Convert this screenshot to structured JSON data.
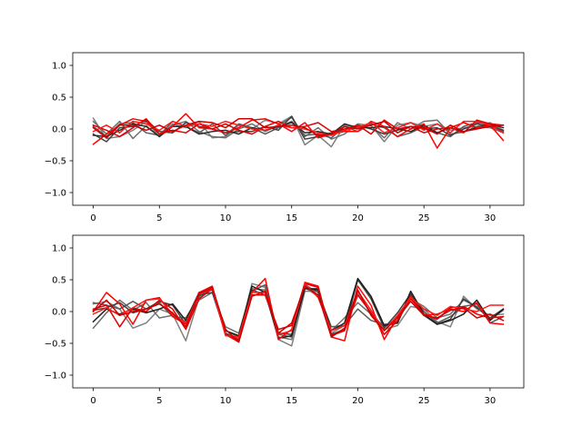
{
  "chart_data": [
    {
      "type": "line",
      "title": "",
      "xlabel": "",
      "ylabel": "",
      "xlim": [
        -1.55,
        32.55
      ],
      "ylim": [
        -1.2,
        1.2
      ],
      "xticks": [
        0,
        5,
        10,
        15,
        20,
        25,
        30
      ],
      "yticks": [
        -1.0,
        -0.5,
        0.0,
        0.5,
        1.0
      ],
      "ytick_labels": [
        "−1.0",
        "−0.5",
        "0.0",
        "0.5",
        "1.0"
      ],
      "x": [
        0,
        1,
        2,
        3,
        4,
        5,
        6,
        7,
        8,
        9,
        10,
        11,
        12,
        13,
        14,
        15,
        16,
        17,
        18,
        19,
        20,
        21,
        22,
        23,
        24,
        25,
        26,
        27,
        28,
        29,
        30,
        31
      ],
      "series": [
        {
          "color": "#808080",
          "values": [
            0.17,
            -0.15,
            -0.12,
            -0.02,
            0.12,
            -0.12,
            0.08,
            0.02,
            0.12,
            -0.14,
            -0.12,
            0.06,
            0.0,
            0.14,
            0.08,
            0.2,
            -0.25,
            -0.1,
            -0.28,
            0.06,
            0.04,
            0.06,
            -0.2,
            0.06,
            0.1,
            0.04,
            0.08,
            -0.02,
            0.02,
            0.04,
            0.1,
            -0.02
          ]
        },
        {
          "color": "#707070",
          "values": [
            0.12,
            -0.08,
            0.12,
            -0.15,
            0.05,
            -0.12,
            0.06,
            0.12,
            -0.04,
            -0.12,
            -0.14,
            0.0,
            0.08,
            -0.04,
            0.06,
            0.18,
            -0.12,
            0.02,
            -0.16,
            -0.08,
            0.08,
            0.05,
            -0.14,
            0.1,
            0.0,
            0.12,
            0.14,
            -0.08,
            -0.05,
            0.04,
            0.02,
            -0.06
          ]
        },
        {
          "color": "#5a5a5a",
          "values": [
            0.04,
            -0.12,
            0.08,
            0.1,
            -0.06,
            -0.1,
            0.12,
            0.04,
            -0.06,
            0.08,
            -0.1,
            0.08,
            0.02,
            -0.08,
            0.02,
            0.12,
            -0.1,
            -0.08,
            -0.14,
            0.04,
            -0.04,
            0.08,
            0.02,
            -0.12,
            -0.06,
            0.04,
            -0.06,
            -0.12,
            0.04,
            0.1,
            0.08,
            -0.04
          ]
        },
        {
          "color": "#404040",
          "values": [
            -0.08,
            -0.2,
            0.02,
            0.04,
            0.14,
            -0.04,
            -0.06,
            0.1,
            0.04,
            0.0,
            -0.06,
            -0.04,
            -0.04,
            0.04,
            -0.02,
            0.2,
            -0.16,
            -0.12,
            -0.06,
            -0.02,
            0.06,
            0.0,
            -0.08,
            -0.02,
            0.04,
            0.0,
            0.02,
            -0.1,
            0.0,
            0.08,
            0.04,
            -0.02
          ]
        },
        {
          "color": "#2a2a2a",
          "values": [
            -0.1,
            -0.12,
            -0.02,
            0.08,
            0.04,
            -0.12,
            0.04,
            0.04,
            -0.08,
            -0.04,
            -0.02,
            -0.08,
            0.02,
            -0.02,
            0.04,
            0.1,
            -0.06,
            -0.04,
            -0.08,
            0.08,
            0.02,
            0.02,
            0.04,
            0.0,
            -0.04,
            0.06,
            -0.06,
            0.02,
            -0.04,
            0.02,
            0.08,
            0.02
          ]
        },
        {
          "color": "#ff0000",
          "values": [
            -0.24,
            -0.08,
            0.06,
            0.16,
            0.12,
            -0.08,
            0.04,
            0.24,
            0.02,
            0.0,
            -0.06,
            0.02,
            0.14,
            0.16,
            0.08,
            -0.04,
            0.1,
            -0.14,
            -0.08,
            -0.04,
            -0.04,
            0.12,
            0.04,
            -0.12,
            0.0,
            0.08,
            -0.3,
            0.02,
            0.1,
            0.02,
            0.06,
            -0.18
          ]
        },
        {
          "color": "#e00000",
          "values": [
            0.06,
            -0.02,
            -0.12,
            0.02,
            0.16,
            -0.08,
            -0.02,
            -0.06,
            0.08,
            0.0,
            0.08,
            -0.02,
            -0.08,
            0.04,
            0.12,
            0.02,
            0.04,
            0.1,
            -0.04,
            0.0,
            0.06,
            -0.08,
            0.14,
            0.0,
            0.04,
            -0.06,
            0.0,
            0.02,
            -0.06,
            0.14,
            0.08,
            0.06
          ]
        },
        {
          "color": "#ff1a1a",
          "values": [
            -0.04,
            0.06,
            -0.06,
            0.12,
            0.08,
            -0.02,
            0.12,
            0.04,
            0.08,
            0.04,
            0.12,
            0.06,
            0.0,
            -0.02,
            0.06,
            0.02,
            0.0,
            -0.06,
            -0.1,
            -0.02,
            0.02,
            0.1,
            -0.06,
            0.02,
            0.1,
            -0.02,
            0.08,
            -0.06,
            0.12,
            0.12,
            0.06,
            -0.06
          ]
        },
        {
          "color": "#cc0000",
          "values": [
            0.02,
            -0.14,
            0.06,
            0.06,
            -0.02,
            0.06,
            -0.04,
            0.06,
            0.12,
            0.1,
            0.02,
            0.16,
            0.16,
            0.02,
            0.04,
            0.06,
            0.02,
            -0.1,
            -0.08,
            0.04,
            0.0,
            0.06,
            0.12,
            -0.06,
            0.04,
            0.02,
            -0.08,
            0.06,
            -0.04,
            0.0,
            0.04,
            0.06
          ]
        }
      ]
    },
    {
      "type": "line",
      "title": "",
      "xlabel": "",
      "ylabel": "",
      "xlim": [
        -1.55,
        32.55
      ],
      "ylim": [
        -1.2,
        1.2
      ],
      "xticks": [
        0,
        5,
        10,
        15,
        20,
        25,
        30
      ],
      "yticks": [
        -1.0,
        -0.5,
        0.0,
        0.5,
        1.0
      ],
      "ytick_labels": [
        "−1.0",
        "−0.5",
        "0.0",
        "0.5",
        "1.0"
      ],
      "x": [
        0,
        1,
        2,
        3,
        4,
        5,
        6,
        7,
        8,
        9,
        10,
        11,
        12,
        13,
        14,
        15,
        16,
        17,
        18,
        19,
        20,
        21,
        22,
        23,
        24,
        25,
        26,
        27,
        28,
        29,
        30,
        31
      ],
      "series": [
        {
          "color": "#808080",
          "values": [
            0.12,
            0.16,
            0.04,
            -0.26,
            -0.18,
            0.04,
            -0.04,
            -0.46,
            0.22,
            0.36,
            -0.34,
            -0.42,
            0.44,
            0.38,
            -0.44,
            -0.54,
            0.32,
            0.32,
            -0.34,
            -0.22,
            0.28,
            -0.02,
            -0.28,
            -0.22,
            0.08,
            0.04,
            -0.16,
            -0.24,
            0.24,
            0.04,
            -0.06,
            -0.04
          ]
        },
        {
          "color": "#6e6e6e",
          "values": [
            -0.26,
            -0.02,
            0.18,
            0.02,
            0.14,
            -0.1,
            -0.06,
            -0.16,
            0.18,
            0.3,
            -0.24,
            -0.34,
            0.36,
            0.34,
            -0.4,
            -0.44,
            0.38,
            0.24,
            -0.3,
            -0.1,
            0.14,
            -0.04,
            -0.24,
            -0.1,
            0.2,
            0.08,
            -0.1,
            -0.04,
            0.18,
            0.08,
            -0.12,
            0.02
          ]
        },
        {
          "color": "#5a5a5a",
          "values": [
            0.14,
            0.1,
            0.04,
            0.16,
            0.04,
            0.14,
            -0.08,
            -0.1,
            0.24,
            0.38,
            -0.3,
            -0.4,
            0.32,
            0.42,
            -0.36,
            -0.4,
            0.42,
            0.3,
            -0.24,
            -0.22,
            0.04,
            -0.14,
            -0.2,
            -0.18,
            0.26,
            0.0,
            -0.18,
            -0.08,
            0.08,
            0.12,
            -0.18,
            -0.08
          ]
        },
        {
          "color": "#404040",
          "values": [
            0.02,
            0.06,
            0.14,
            -0.02,
            0.04,
            0.16,
            0.1,
            -0.2,
            0.26,
            0.3,
            -0.34,
            -0.46,
            0.34,
            0.26,
            -0.34,
            -0.36,
            0.36,
            0.36,
            -0.36,
            -0.28,
            0.5,
            0.2,
            -0.26,
            -0.02,
            0.28,
            -0.06,
            -0.2,
            -0.12,
            0.2,
            0.06,
            -0.1,
            0.04
          ]
        },
        {
          "color": "#1e1e1e",
          "values": [
            -0.16,
            0.04,
            -0.04,
            0.04,
            -0.02,
            0.04,
            0.12,
            -0.14,
            0.3,
            0.34,
            -0.3,
            -0.38,
            0.4,
            0.3,
            -0.42,
            -0.38,
            0.36,
            0.34,
            -0.3,
            -0.18,
            0.52,
            0.24,
            -0.22,
            -0.18,
            0.32,
            -0.04,
            -0.2,
            -0.14,
            -0.04,
            0.18,
            -0.14,
            0.04
          ]
        },
        {
          "color": "#ff0000",
          "values": [
            0.0,
            0.3,
            0.12,
            -0.2,
            0.18,
            0.22,
            -0.08,
            -0.2,
            0.3,
            0.4,
            -0.36,
            -0.48,
            0.3,
            0.52,
            -0.44,
            -0.28,
            0.46,
            0.4,
            -0.4,
            -0.46,
            0.4,
            0.1,
            -0.44,
            -0.08,
            0.24,
            -0.06,
            -0.04,
            0.04,
            0.0,
            0.14,
            -0.18,
            -0.2
          ]
        },
        {
          "color": "#e00000",
          "values": [
            0.04,
            0.1,
            -0.24,
            0.06,
            0.0,
            0.18,
            0.04,
            -0.28,
            0.2,
            0.36,
            -0.36,
            -0.44,
            0.26,
            0.26,
            -0.28,
            -0.22,
            0.44,
            0.38,
            -0.38,
            -0.3,
            0.26,
            -0.02,
            -0.36,
            -0.14,
            0.2,
            -0.04,
            -0.12,
            0.06,
            0.08,
            -0.04,
            -0.1,
            -0.08
          ]
        },
        {
          "color": "#ff1a1a",
          "values": [
            -0.04,
            0.06,
            -0.06,
            0.06,
            0.18,
            0.2,
            -0.04,
            -0.18,
            0.28,
            0.36,
            -0.38,
            -0.4,
            0.3,
            0.3,
            -0.36,
            -0.3,
            0.44,
            0.22,
            -0.3,
            -0.22,
            0.32,
            0.02,
            -0.3,
            -0.06,
            0.22,
            0.04,
            -0.06,
            0.08,
            0.04,
            0.0,
            0.1,
            0.1
          ]
        },
        {
          "color": "#cc0000",
          "values": [
            0.0,
            0.18,
            -0.06,
            0.0,
            0.04,
            0.12,
            -0.02,
            -0.24,
            0.28,
            0.38,
            -0.28,
            -0.48,
            0.24,
            0.32,
            -0.34,
            -0.18,
            0.4,
            0.26,
            -0.4,
            -0.26,
            0.34,
            -0.06,
            -0.3,
            -0.1,
            0.16,
            -0.06,
            -0.1,
            0.02,
            0.06,
            -0.1,
            -0.04,
            -0.14
          ]
        }
      ]
    }
  ]
}
